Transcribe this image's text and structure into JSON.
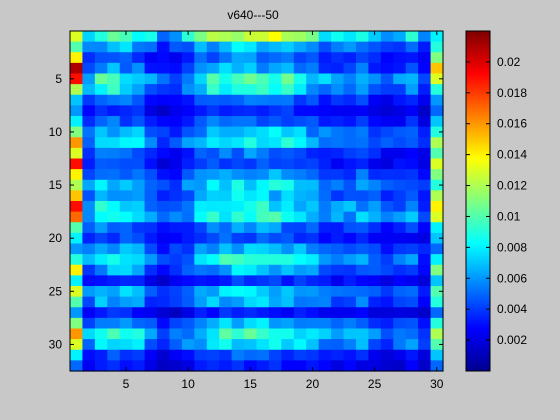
{
  "chart_data": {
    "type": "heatmap",
    "title": "v640---50",
    "xlabel": "",
    "ylabel": "",
    "colormap": "jet",
    "rows": 32,
    "cols": 30,
    "xlim": [
      0.5,
      30.5
    ],
    "ylim": [
      0.5,
      32.5
    ],
    "x_ticks": [
      5,
      10,
      15,
      20,
      25,
      30
    ],
    "y_ticks": [
      5,
      10,
      15,
      20,
      25,
      30
    ],
    "clim": [
      0,
      0.022
    ],
    "colorbar_ticks": [
      0.002,
      0.004,
      0.006,
      0.008,
      0.01,
      0.012,
      0.014,
      0.016,
      0.018,
      0.02
    ],
    "colorbar_tick_labels": [
      "0.002",
      "0.004",
      "0.006",
      "0.008",
      "0.01",
      "0.012",
      "0.014",
      "0.016",
      "0.018",
      "0.02"
    ],
    "row_bands": [
      0.0105,
      0.0065,
      0.0045,
      0.0055,
      0.0085,
      0.0075,
      0.0045,
      0.0035,
      0.0045,
      0.0065,
      0.0075,
      0.0045,
      0.004,
      0.0055,
      0.007,
      0.006,
      0.0075,
      0.008,
      0.005,
      0.004,
      0.006,
      0.0075,
      0.006,
      0.0035,
      0.0065,
      0.006,
      0.003,
      0.006,
      0.008,
      0.007,
      0.004,
      0.003
    ],
    "col_profile": [
      0.45,
      0.8,
      1.05,
      1.1,
      1.05,
      0.95,
      0.7,
      0.55,
      0.6,
      0.75,
      0.95,
      1.05,
      1.15,
      1.2,
      1.2,
      1.15,
      1.1,
      1.05,
      1.0,
      0.9,
      0.8,
      0.75,
      0.8,
      0.85,
      0.7,
      0.6,
      0.65,
      0.75,
      0.5,
      0.45
    ],
    "left_edge_column": [
      0.013,
      0.01,
      0.014,
      0.021,
      0.019,
      0.012,
      0.007,
      0.006,
      0.008,
      0.011,
      0.016,
      0.013,
      0.019,
      0.014,
      0.012,
      0.015,
      0.019,
      0.017,
      0.01,
      0.008,
      0.006,
      0.009,
      0.014,
      0.008,
      0.013,
      0.01,
      0.006,
      0.011,
      0.016,
      0.013,
      0.008,
      0.005
    ],
    "right_edge_column": [
      0.008,
      0.009,
      0.011,
      0.015,
      0.013,
      0.009,
      0.006,
      0.005,
      0.007,
      0.009,
      0.012,
      0.01,
      0.013,
      0.011,
      0.009,
      0.012,
      0.014,
      0.013,
      0.008,
      0.007,
      0.005,
      0.008,
      0.011,
      0.007,
      0.01,
      0.009,
      0.005,
      0.009,
      0.012,
      0.01,
      0.007,
      0.005
    ]
  }
}
